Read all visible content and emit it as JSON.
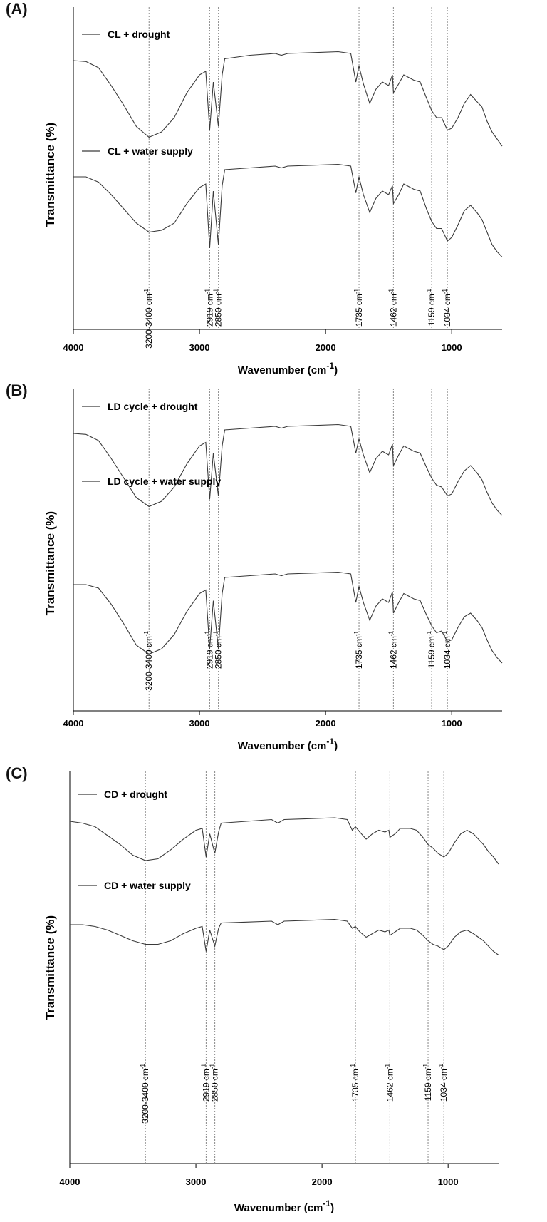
{
  "colors": {
    "trace": "#3a3a3a",
    "axis": "#000000",
    "guide": "#888888"
  },
  "chart_data": [
    {
      "panel_label": "(A)",
      "type": "line",
      "xlabel": "Wavenumber (cm",
      "xlabel_sup": "-1",
      "xlabel_close": ")",
      "ylabel": "Transmittance  (%)",
      "xlim": [
        4000,
        600
      ],
      "x_reversed": true,
      "x_ticks": [
        "4000",
        "3000",
        "2000",
        "1000"
      ],
      "x_tick_values": [
        4000,
        3000,
        2000,
        1000
      ],
      "y_ticks": "none",
      "grid": false,
      "legend_position": "inside-left",
      "series": [
        {
          "name": "CL + drought",
          "x": [
            4000,
            3900,
            3800,
            3700,
            3600,
            3500,
            3400,
            3300,
            3200,
            3100,
            3000,
            2950,
            2919,
            2890,
            2850,
            2820,
            2800,
            2600,
            2400,
            2350,
            2300,
            2100,
            1900,
            1800,
            1760,
            1735,
            1700,
            1650,
            1600,
            1550,
            1500,
            1470,
            1462,
            1420,
            1380,
            1300,
            1250,
            1200,
            1159,
            1120,
            1080,
            1034,
            1000,
            950,
            900,
            850,
            800,
            760,
            720,
            680,
            640,
            600
          ],
          "y": [
            84,
            83.5,
            80,
            70,
            59,
            47,
            41,
            44,
            52,
            66,
            76,
            78,
            45,
            72,
            47,
            76,
            85,
            87,
            88,
            87,
            88,
            88.5,
            89,
            88,
            72,
            81,
            71,
            60,
            68,
            72,
            70,
            76,
            66,
            71,
            76,
            73,
            72,
            63,
            56,
            52,
            52,
            45,
            46,
            52,
            60,
            65,
            61,
            58,
            50,
            44,
            40,
            36
          ]
        },
        {
          "name": "CL + water supply",
          "x": [
            4000,
            3900,
            3800,
            3700,
            3600,
            3500,
            3400,
            3300,
            3200,
            3100,
            3000,
            2950,
            2919,
            2890,
            2850,
            2820,
            2800,
            2600,
            2400,
            2350,
            2300,
            2100,
            1900,
            1800,
            1760,
            1735,
            1700,
            1650,
            1600,
            1550,
            1500,
            1470,
            1462,
            1420,
            1380,
            1300,
            1250,
            1200,
            1159,
            1120,
            1080,
            1034,
            1000,
            950,
            900,
            850,
            800,
            760,
            720,
            680,
            640,
            600
          ],
          "y": [
            82,
            82,
            79,
            72,
            64,
            56,
            51,
            52,
            56,
            67,
            76,
            78,
            42,
            74,
            44,
            77,
            86,
            87,
            88,
            87,
            88,
            88.5,
            89,
            88,
            73,
            82,
            72,
            62,
            70,
            74,
            72,
            77,
            67,
            72,
            78,
            75,
            74,
            64,
            57,
            53,
            53,
            46,
            48,
            55,
            63,
            66,
            62,
            58,
            51,
            44,
            40,
            37
          ]
        }
      ],
      "annotations": [
        {
          "wavenumber": 3400,
          "label": "3200-3400 cm"
        },
        {
          "wavenumber": 2919,
          "label": "2919 cm"
        },
        {
          "wavenumber": 2850,
          "label": "2850 cm"
        },
        {
          "wavenumber": 1735,
          "label": "1735 cm"
        },
        {
          "wavenumber": 1462,
          "label": "1462 cm"
        },
        {
          "wavenumber": 1159,
          "label": "1159 cm"
        },
        {
          "wavenumber": 1034,
          "label": "1034 cm"
        }
      ],
      "annotation_sup": "-1"
    },
    {
      "panel_label": "(B)",
      "type": "line",
      "xlabel": "Wavenumber (cm",
      "xlabel_sup": "-1",
      "xlabel_close": ")",
      "ylabel": "Transmittance  (%)",
      "xlim": [
        4000,
        600
      ],
      "x_reversed": true,
      "x_ticks": [
        "4000",
        "3000",
        "2000",
        "1000"
      ],
      "x_tick_values": [
        4000,
        3000,
        2000,
        1000
      ],
      "y_ticks": "none",
      "grid": false,
      "legend_position": "inside-left",
      "series": [
        {
          "name": "LD cycle + drought",
          "x": [
            4000,
            3900,
            3800,
            3700,
            3600,
            3500,
            3400,
            3300,
            3200,
            3100,
            3000,
            2950,
            2919,
            2890,
            2850,
            2820,
            2800,
            2600,
            2400,
            2350,
            2300,
            2100,
            1900,
            1800,
            1760,
            1735,
            1700,
            1650,
            1600,
            1550,
            1500,
            1470,
            1462,
            1420,
            1380,
            1300,
            1250,
            1200,
            1159,
            1120,
            1080,
            1034,
            1000,
            950,
            900,
            850,
            800,
            760,
            720,
            680,
            640,
            600
          ],
          "y": [
            84,
            83.5,
            80,
            70,
            59,
            48,
            43,
            46,
            54,
            67,
            77,
            79,
            47,
            73,
            49,
            77,
            86,
            87,
            88,
            87,
            88,
            88.5,
            89,
            88,
            73,
            81,
            72,
            62,
            70,
            74,
            72,
            78,
            66,
            72,
            77,
            74,
            73,
            65,
            59,
            55,
            54,
            49,
            50,
            57,
            63,
            66,
            62,
            58,
            51,
            45,
            41,
            38
          ]
        },
        {
          "name": "LD cycle + water supply",
          "x": [
            4000,
            3900,
            3800,
            3700,
            3600,
            3500,
            3400,
            3300,
            3200,
            3100,
            3000,
            2950,
            2919,
            2890,
            2850,
            2820,
            2800,
            2600,
            2400,
            2350,
            2300,
            2100,
            1900,
            1800,
            1760,
            1735,
            1700,
            1650,
            1600,
            1550,
            1500,
            1470,
            1462,
            1420,
            1380,
            1300,
            1250,
            1200,
            1159,
            1120,
            1080,
            1034,
            1000,
            950,
            900,
            850,
            800,
            760,
            720,
            680,
            640,
            600
          ],
          "y": [
            82,
            82,
            80,
            71,
            60,
            48,
            43,
            46,
            54,
            67,
            77,
            79,
            46,
            73,
            46,
            77,
            86,
            87,
            88,
            87,
            88,
            88.5,
            89,
            88,
            72,
            81,
            72,
            62,
            70,
            74,
            72,
            78,
            66,
            72,
            77,
            74,
            73,
            65,
            59,
            55,
            56,
            50,
            51,
            58,
            64,
            66,
            62,
            58,
            51,
            45,
            41,
            38
          ]
        }
      ],
      "annotations": [
        {
          "wavenumber": 3400,
          "label": "3200-3400 cm"
        },
        {
          "wavenumber": 2919,
          "label": "2919 cm"
        },
        {
          "wavenumber": 2850,
          "label": "2850 cm"
        },
        {
          "wavenumber": 1735,
          "label": "1735 cm"
        },
        {
          "wavenumber": 1462,
          "label": "1462 cm"
        },
        {
          "wavenumber": 1159,
          "label": "1159 cm"
        },
        {
          "wavenumber": 1034,
          "label": "1034 cm"
        }
      ],
      "annotation_sup": "-1"
    },
    {
      "panel_label": "(C)",
      "type": "line",
      "xlabel": "Wavenumber (cm",
      "xlabel_sup": "-1",
      "xlabel_close": ")",
      "ylabel": "Transmittance  (%)",
      "xlim": [
        4000,
        600
      ],
      "x_reversed": true,
      "x_ticks": [
        "4000",
        "3000",
        "2000",
        "1000"
      ],
      "x_tick_values": [
        4000,
        3000,
        2000,
        1000
      ],
      "y_ticks": "none",
      "grid": false,
      "legend_position": "inside-left",
      "series": [
        {
          "name": "CD + drought",
          "x": [
            4000,
            3900,
            3800,
            3700,
            3600,
            3500,
            3400,
            3300,
            3200,
            3100,
            3000,
            2950,
            2919,
            2890,
            2850,
            2820,
            2800,
            2600,
            2400,
            2350,
            2300,
            2100,
            1900,
            1800,
            1760,
            1735,
            1700,
            1650,
            1600,
            1550,
            1500,
            1470,
            1462,
            1420,
            1380,
            1300,
            1250,
            1200,
            1159,
            1120,
            1080,
            1034,
            1000,
            950,
            900,
            850,
            800,
            760,
            720,
            680,
            640,
            600
          ],
          "y": [
            82,
            81,
            79,
            74,
            69,
            63,
            60,
            61,
            66,
            72,
            77,
            78,
            62,
            75,
            64,
            76,
            81,
            82,
            83,
            81,
            83,
            83.5,
            84,
            83,
            77,
            79,
            76,
            72,
            75,
            77,
            76,
            77,
            73,
            75,
            78,
            78,
            77,
            73,
            69,
            67,
            64,
            62,
            64,
            70,
            75,
            77,
            75,
            72,
            69,
            65,
            62,
            58
          ]
        },
        {
          "name": "CD + water supply",
          "x": [
            4000,
            3900,
            3800,
            3700,
            3600,
            3500,
            3400,
            3300,
            3200,
            3100,
            3000,
            2950,
            2919,
            2890,
            2850,
            2820,
            2800,
            2600,
            2400,
            2350,
            2300,
            2100,
            1900,
            1800,
            1760,
            1735,
            1700,
            1650,
            1600,
            1550,
            1500,
            1470,
            1462,
            1420,
            1380,
            1300,
            1250,
            1200,
            1159,
            1120,
            1080,
            1034,
            1000,
            950,
            900,
            850,
            800,
            760,
            720,
            680,
            640,
            600
          ],
          "y": [
            78,
            78,
            77,
            75,
            72,
            69,
            67,
            67,
            69,
            73,
            76,
            77,
            63,
            75,
            66,
            76,
            79,
            79.5,
            80,
            78,
            80,
            80.5,
            81,
            80,
            76,
            77,
            74,
            71,
            73,
            75,
            74,
            75,
            72,
            74,
            76,
            76,
            75,
            72,
            69,
            67,
            66,
            64,
            66,
            71,
            74,
            75,
            73,
            71,
            69,
            66,
            63,
            61
          ]
        }
      ],
      "annotations": [
        {
          "wavenumber": 3400,
          "label": "3200-3400 cm"
        },
        {
          "wavenumber": 2919,
          "label": "2919 cm"
        },
        {
          "wavenumber": 2850,
          "label": "2850 cm"
        },
        {
          "wavenumber": 1735,
          "label": "1735 cm"
        },
        {
          "wavenumber": 1462,
          "label": "1462 cm"
        },
        {
          "wavenumber": 1159,
          "label": "1159 cm"
        },
        {
          "wavenumber": 1034,
          "label": "1034 cm"
        }
      ],
      "annotation_sup": "-1"
    }
  ]
}
